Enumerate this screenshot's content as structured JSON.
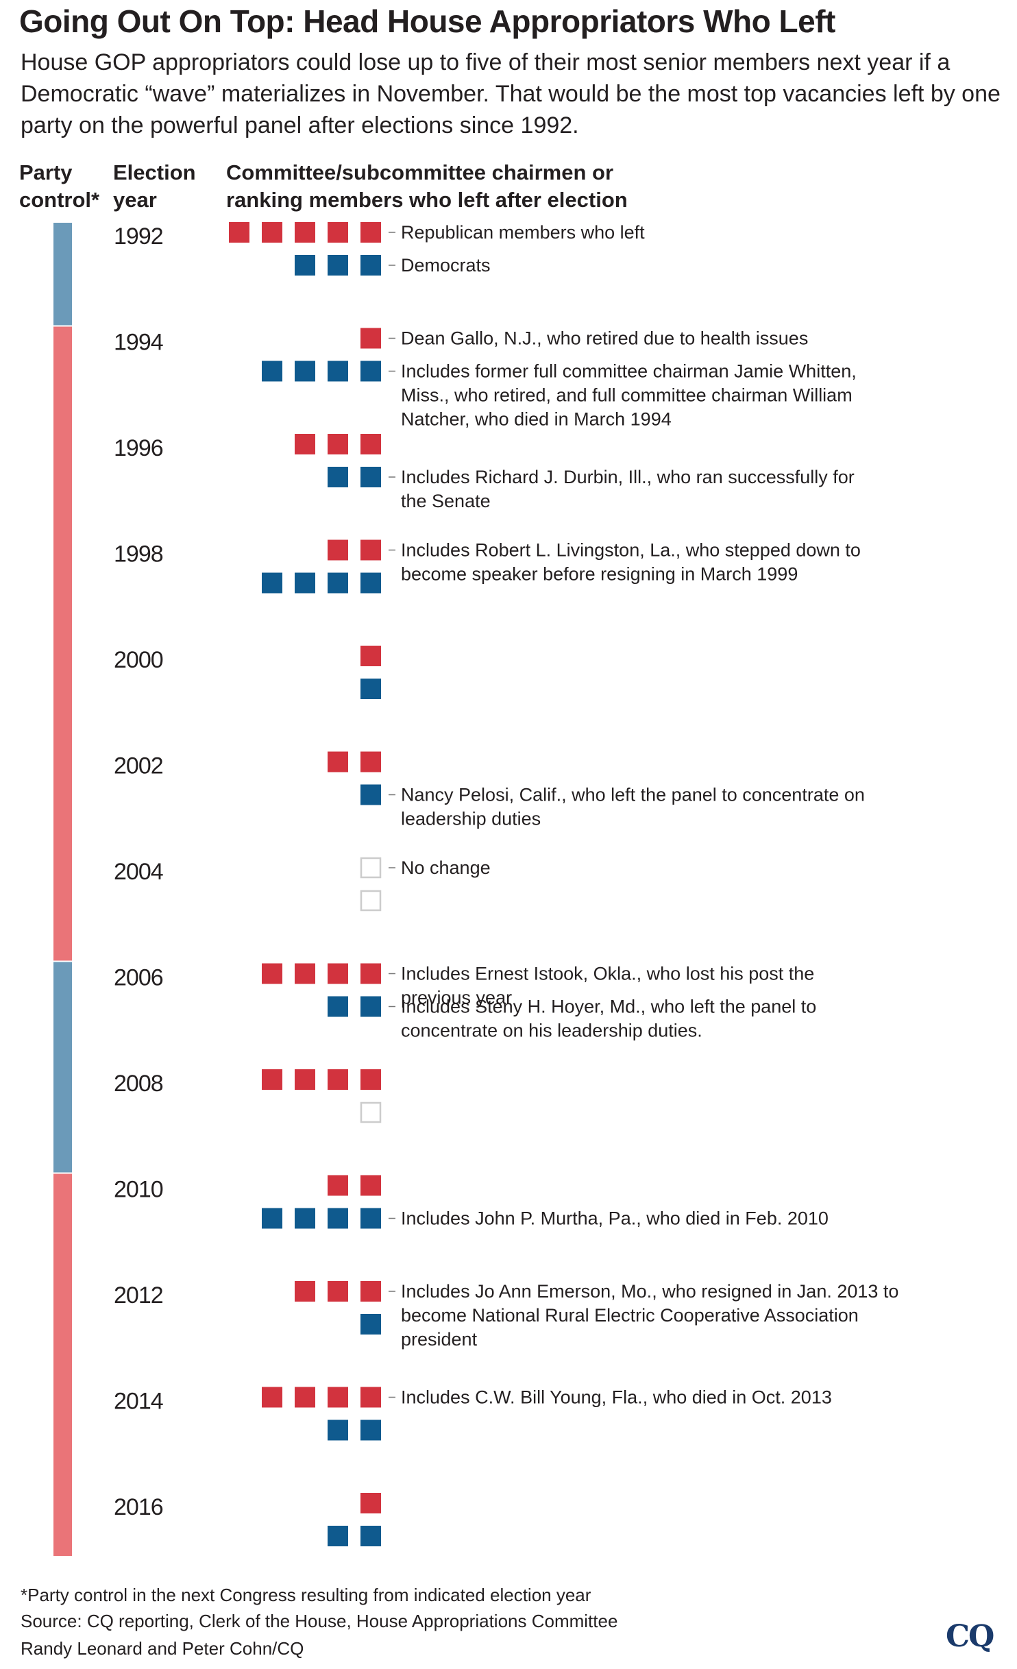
{
  "title": "Going Out On Top: Head House Appropriators Who Left",
  "subtitle": "House GOP appropriators could lose up to five of their most senior members next year if a Democratic “wave” materializes in November. That would be the most top vacancies left by one party on the powerful panel after elections since 1992.",
  "headers": {
    "party": "Party\ncontrol*",
    "year": "Election\nyear",
    "members": "Committee/subcommittee chairmen or\nranking members who left after election"
  },
  "colors": {
    "republican": "#d2333e",
    "democrat": "#0f5a8e",
    "party_bar_dem": "#6b9ab9",
    "party_bar_rep": "#ea7478",
    "empty": "#cccccc"
  },
  "chart_data": {
    "type": "table",
    "rows": [
      {
        "year": "1992",
        "party_control": "D",
        "republicans": 5,
        "democrats": 3,
        "rep_note": "Republican members who left",
        "dem_note": "Democrats"
      },
      {
        "year": "1994",
        "party_control": "R",
        "republicans": 1,
        "democrats": 4,
        "rep_note": "Dean Gallo, N.J., who retired due to health issues",
        "dem_note": "Includes former full committee chairman Jamie Whitten, Miss., who retired, and full committee chairman William Natcher, who died in March 1994"
      },
      {
        "year": "1996",
        "party_control": "R",
        "republicans": 3,
        "democrats": 2,
        "rep_note": "",
        "dem_note": "Includes Richard J. Durbin, Ill., who ran successfully for the Senate"
      },
      {
        "year": "1998",
        "party_control": "R",
        "republicans": 2,
        "democrats": 4,
        "rep_note": "Includes Robert L. Livingston, La., who stepped down to become speaker before resigning in March 1999",
        "dem_note": ""
      },
      {
        "year": "2000",
        "party_control": "R",
        "republicans": 1,
        "democrats": 1,
        "rep_note": "",
        "dem_note": ""
      },
      {
        "year": "2002",
        "party_control": "R",
        "republicans": 2,
        "democrats": 1,
        "rep_note": "",
        "dem_note": "Nancy Pelosi, Calif., who left the panel to concentrate on leadership duties"
      },
      {
        "year": "2004",
        "party_control": "R",
        "republicans": 0,
        "democrats": 0,
        "rep_note": "No change",
        "dem_note": ""
      },
      {
        "year": "2006",
        "party_control": "D",
        "republicans": 4,
        "democrats": 2,
        "rep_note": "Includes Ernest Istook, Okla., who lost his post the previous year",
        "dem_note": "Includes Steny H. Hoyer, Md., who left the panel to concentrate on his leadership duties."
      },
      {
        "year": "2008",
        "party_control": "D",
        "republicans": 4,
        "democrats": 0,
        "rep_note": "",
        "dem_note": ""
      },
      {
        "year": "2010",
        "party_control": "R",
        "republicans": 2,
        "democrats": 4,
        "rep_note": "",
        "dem_note": "Includes John P. Murtha, Pa., who died in Feb. 2010"
      },
      {
        "year": "2012",
        "party_control": "R",
        "republicans": 3,
        "democrats": 1,
        "rep_note": "Includes Jo Ann Emerson, Mo., who resigned in Jan. 2013 to become National Rural Electric Cooperative Association president",
        "dem_note": ""
      },
      {
        "year": "2014",
        "party_control": "R",
        "republicans": 4,
        "democrats": 2,
        "rep_note": "Includes C.W. Bill Young, Fla., who died in Oct. 2013",
        "dem_note": ""
      },
      {
        "year": "2016",
        "party_control": "R",
        "republicans": 1,
        "democrats": 2,
        "rep_note": "",
        "dem_note": ""
      }
    ]
  },
  "footer": {
    "note": "*Party control in the next Congress resulting from indicated election year",
    "source": "Source: CQ reporting, Clerk of the House, House Appropriations Committee",
    "credit": "Randy Leonard and Peter Cohn/CQ",
    "logo": "CQ"
  }
}
